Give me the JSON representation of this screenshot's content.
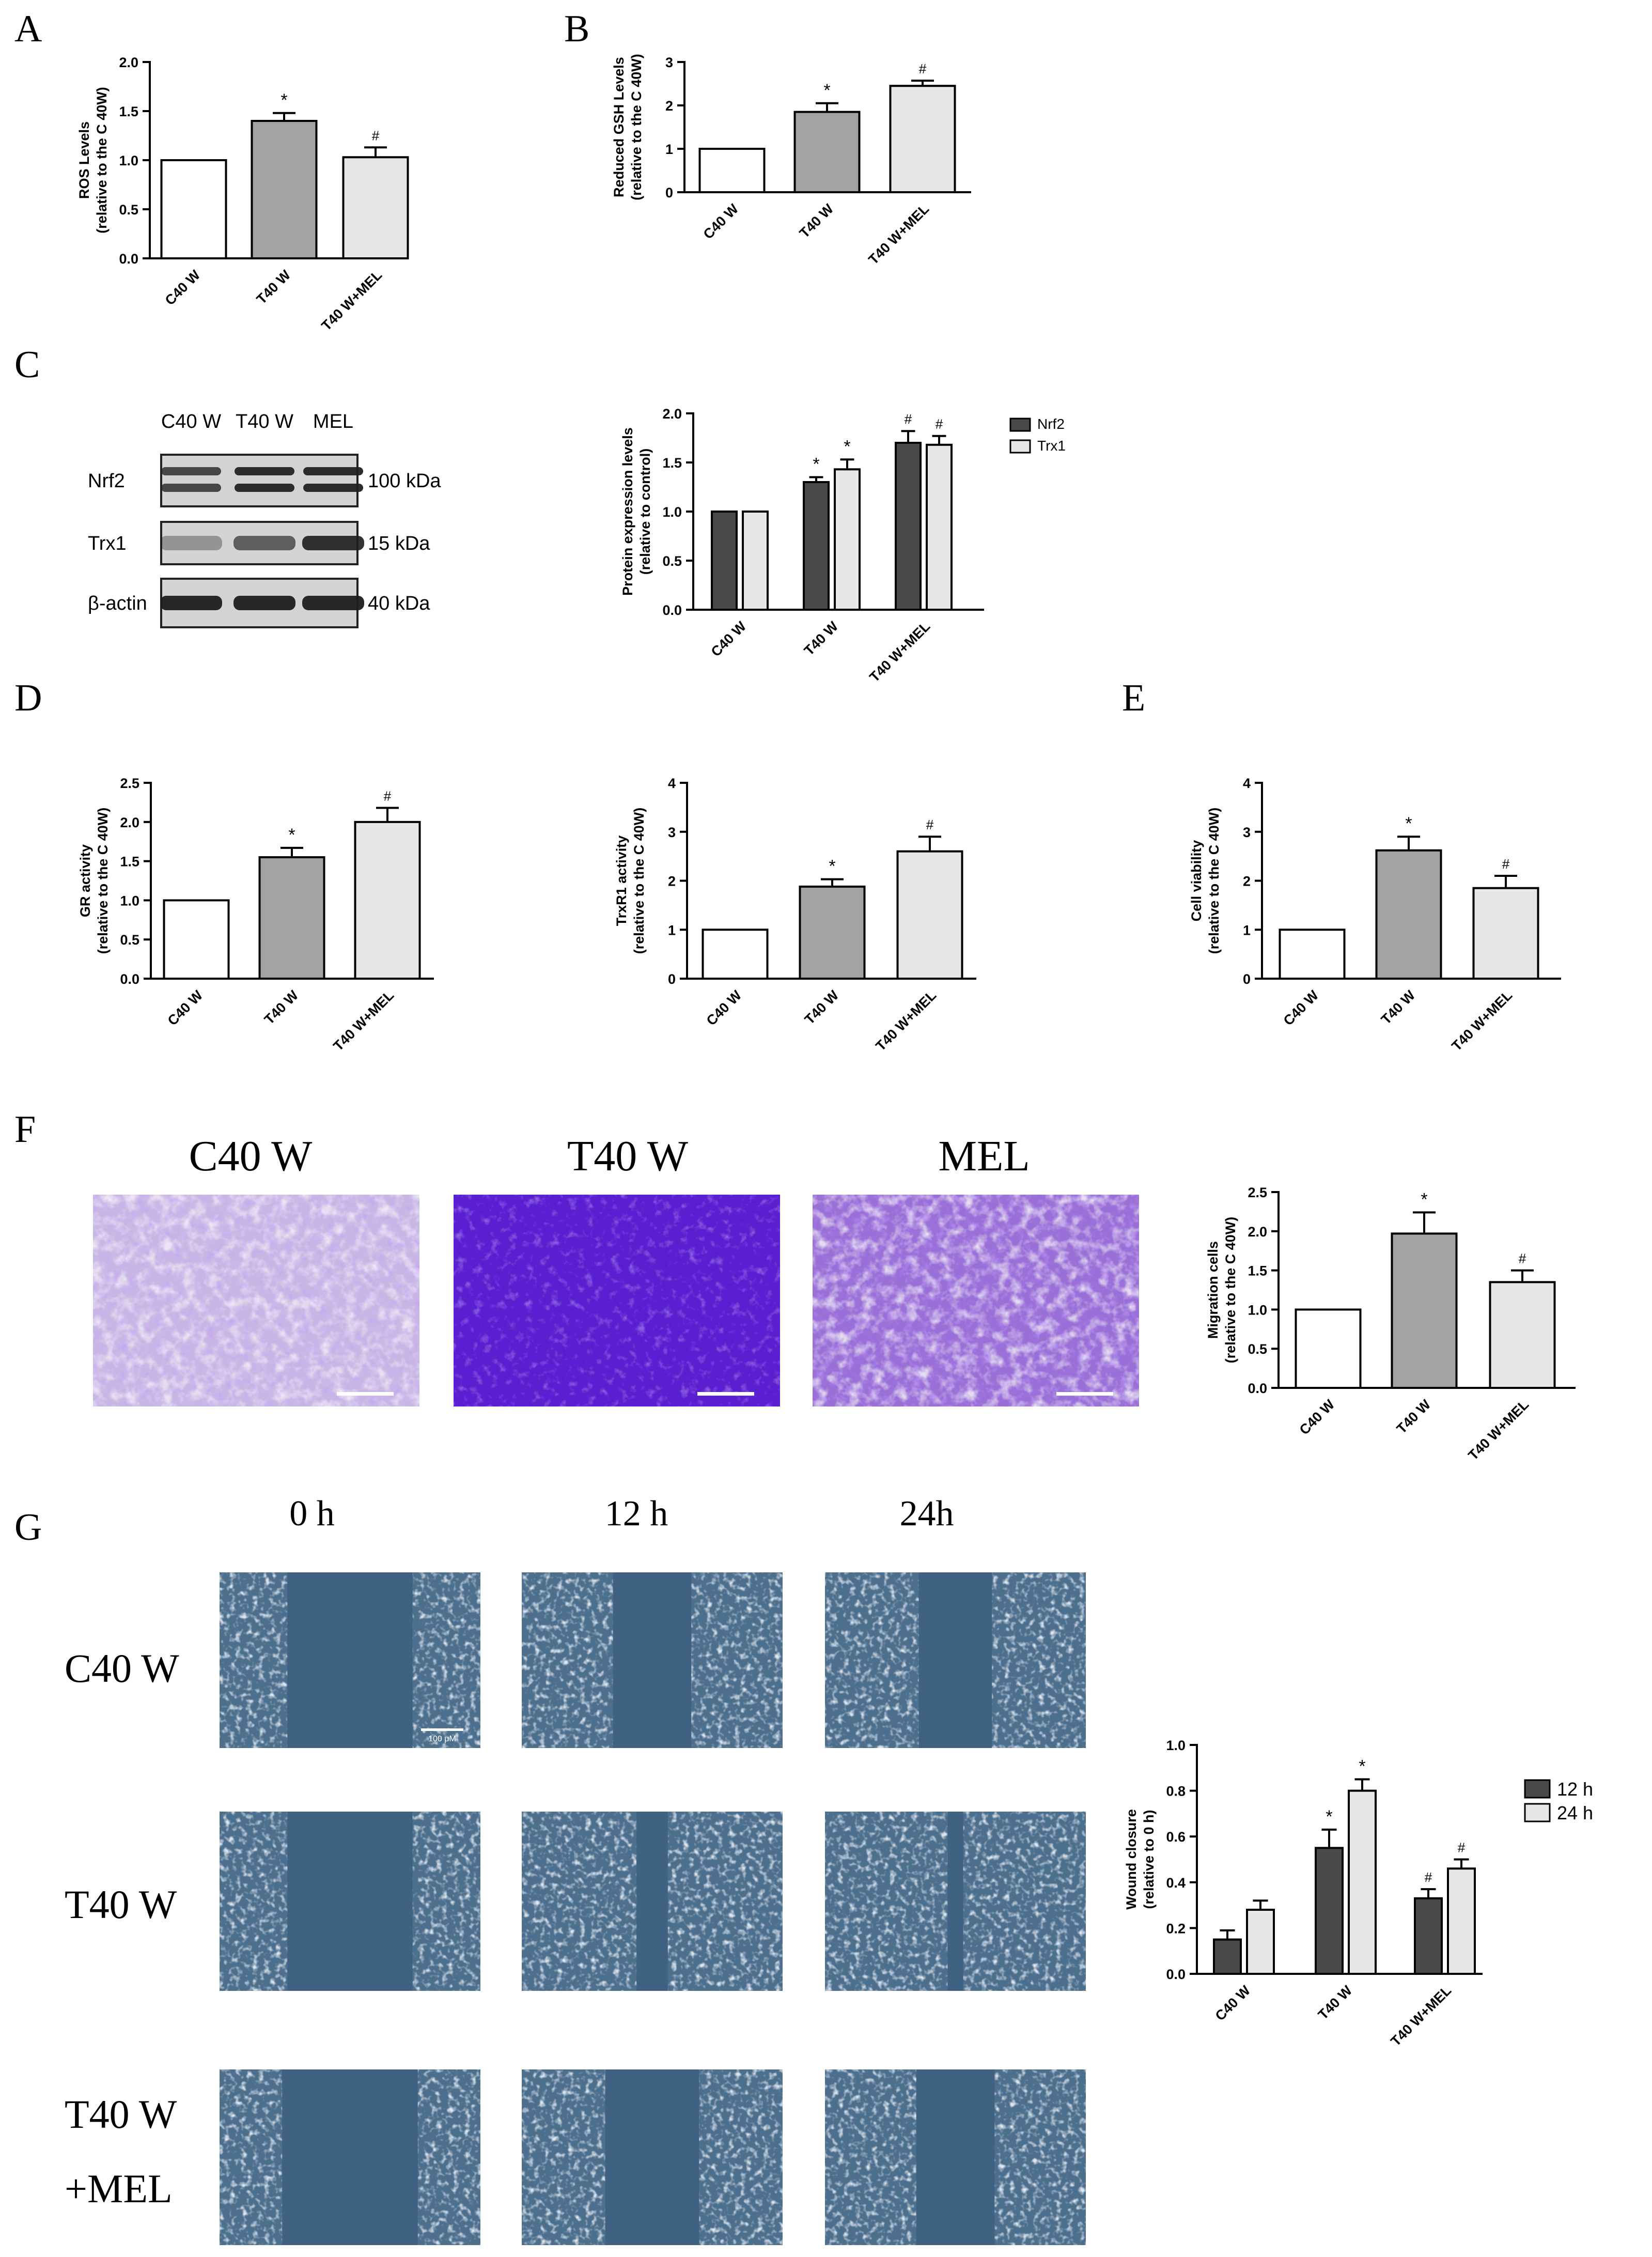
{
  "panel_letters": [
    "A",
    "B",
    "C",
    "D",
    "E",
    "F",
    "G"
  ],
  "western_blot": {
    "lane_labels": [
      "C40 W",
      "T40 W",
      "MEL"
    ],
    "rows": [
      {
        "protein": "Nrf2",
        "mw": "100 kDa"
      },
      {
        "protein": "Trx1",
        "mw": "15 kDa"
      },
      {
        "protein": "β-actin",
        "mw": "40 kDa"
      }
    ]
  },
  "micrographs": {
    "transwell_labels": [
      "C40 W",
      "T40 W",
      "MEL"
    ],
    "wound_columns": [
      "0 h",
      "12 h",
      "24h"
    ],
    "wound_rows": [
      "C40 W",
      "T40 W",
      "T40 W\n+MEL"
    ],
    "scale_bar_label": "100 μM"
  },
  "colors": {
    "white_bar": "#ffffff",
    "gray_bar": "#a3a3a3",
    "light_bar": "#e6e8e6",
    "dark_bar": "#4a4848",
    "axis": "#000000",
    "crystal_violet": "#6b2fc0",
    "phase_contrast": "#4d6f8e"
  },
  "chart_data": [
    {
      "id": "A",
      "type": "bar",
      "title": "",
      "ylabel": "ROS Levels",
      "ylabel2": "(relative to the C 40W)",
      "ylim": [
        0,
        2.0
      ],
      "yticks": [
        "0.0",
        "0.5",
        "1.0",
        "1.5",
        "2.0"
      ],
      "categories": [
        "C40 W",
        "T40 W",
        "T40 W+MEL"
      ],
      "series": [
        {
          "name": "",
          "values": [
            1.0,
            1.4,
            1.03
          ],
          "errors": [
            0,
            0.08,
            0.1
          ],
          "marks": [
            "",
            "*",
            "#"
          ]
        }
      ]
    },
    {
      "id": "B",
      "type": "bar",
      "title": "",
      "ylabel": "Reduced GSH Levels",
      "ylabel2": "(relative to the C 40W)",
      "ylim": [
        0,
        3
      ],
      "yticks": [
        "0",
        "1",
        "2",
        "3"
      ],
      "categories": [
        "C40 W",
        "T40 W",
        "T40 W+MEL"
      ],
      "series": [
        {
          "name": "",
          "values": [
            1.0,
            1.85,
            2.45
          ],
          "errors": [
            0,
            0.2,
            0.12
          ],
          "marks": [
            "",
            "*",
            "#"
          ]
        }
      ]
    },
    {
      "id": "C",
      "type": "bar",
      "title": "",
      "ylabel": "Protein expression levels",
      "ylabel2": "(relative to control)",
      "ylim": [
        0,
        2.0
      ],
      "yticks": [
        "0.0",
        "0.5",
        "1.0",
        "1.5",
        "2.0"
      ],
      "categories": [
        "C40 W",
        "T40 W",
        "T40 W+MEL"
      ],
      "series": [
        {
          "name": "Nrf2",
          "values": [
            1.0,
            1.3,
            1.7
          ],
          "errors": [
            0,
            0.05,
            0.12
          ],
          "marks": [
            "",
            "*",
            "#"
          ]
        },
        {
          "name": "Trx1",
          "values": [
            1.0,
            1.43,
            1.68
          ],
          "errors": [
            0,
            0.1,
            0.09
          ],
          "marks": [
            "",
            "*",
            "#"
          ]
        }
      ]
    },
    {
      "id": "D1",
      "type": "bar",
      "title": "",
      "ylabel": "GR activity",
      "ylabel2": "(relative to the C 40W)",
      "ylim": [
        0,
        2.5
      ],
      "yticks": [
        "0.0",
        "0.5",
        "1.0",
        "1.5",
        "2.0",
        "2.5"
      ],
      "categories": [
        "C40 W",
        "T40 W",
        "T40 W+MEL"
      ],
      "series": [
        {
          "name": "",
          "values": [
            1.0,
            1.55,
            2.0
          ],
          "errors": [
            0,
            0.12,
            0.18
          ],
          "marks": [
            "",
            "*",
            "#"
          ]
        }
      ]
    },
    {
      "id": "D2",
      "type": "bar",
      "title": "",
      "ylabel": "TrxR1 activity",
      "ylabel2": "(relative to the C 40W)",
      "ylim": [
        0,
        4
      ],
      "yticks": [
        "0",
        "1",
        "2",
        "3",
        "4"
      ],
      "categories": [
        "C40 W",
        "T40 W",
        "T40 W+MEL"
      ],
      "series": [
        {
          "name": "",
          "values": [
            1.0,
            1.88,
            2.6
          ],
          "errors": [
            0,
            0.15,
            0.3
          ],
          "marks": [
            "",
            "*",
            "#"
          ]
        }
      ]
    },
    {
      "id": "E",
      "type": "bar",
      "title": "",
      "ylabel": "Cell viability",
      "ylabel2": "(relative to the C 40W)",
      "ylim": [
        0,
        4
      ],
      "yticks": [
        "0",
        "1",
        "2",
        "3",
        "4"
      ],
      "categories": [
        "C40 W",
        "T40 W",
        "T40 W+MEL"
      ],
      "series": [
        {
          "name": "",
          "values": [
            1.0,
            2.62,
            1.85
          ],
          "errors": [
            0,
            0.28,
            0.25
          ],
          "marks": [
            "",
            "*",
            "#"
          ]
        }
      ]
    },
    {
      "id": "F",
      "type": "bar",
      "title": "",
      "ylabel": "Migration cells",
      "ylabel2": "(relative to the C 40W)",
      "ylim": [
        0,
        2.5
      ],
      "yticks": [
        "0.0",
        "0.5",
        "1.0",
        "1.5",
        "2.0",
        "2.5"
      ],
      "categories": [
        "C40 W",
        "T40 W",
        "T40 W+MEL"
      ],
      "series": [
        {
          "name": "",
          "values": [
            1.0,
            1.97,
            1.35
          ],
          "errors": [
            0,
            0.27,
            0.15
          ],
          "marks": [
            "",
            "*",
            "#"
          ]
        }
      ]
    },
    {
      "id": "G",
      "type": "bar",
      "title": "",
      "ylabel": "Wound closure",
      "ylabel2": "(relative to 0 h)",
      "ylim": [
        0,
        1.0
      ],
      "yticks": [
        "0.0",
        "0.2",
        "0.4",
        "0.6",
        "0.8",
        "1.0"
      ],
      "categories": [
        "C40 W",
        "T40 W",
        "T40 W+MEL"
      ],
      "series": [
        {
          "name": "12 h",
          "values": [
            0.15,
            0.55,
            0.33
          ],
          "errors": [
            0.04,
            0.08,
            0.04
          ],
          "marks": [
            "",
            "*",
            "#"
          ]
        },
        {
          "name": "24 h",
          "values": [
            0.28,
            0.8,
            0.46
          ],
          "errors": [
            0.04,
            0.05,
            0.04
          ],
          "marks": [
            "",
            "*",
            "#"
          ]
        }
      ]
    }
  ]
}
